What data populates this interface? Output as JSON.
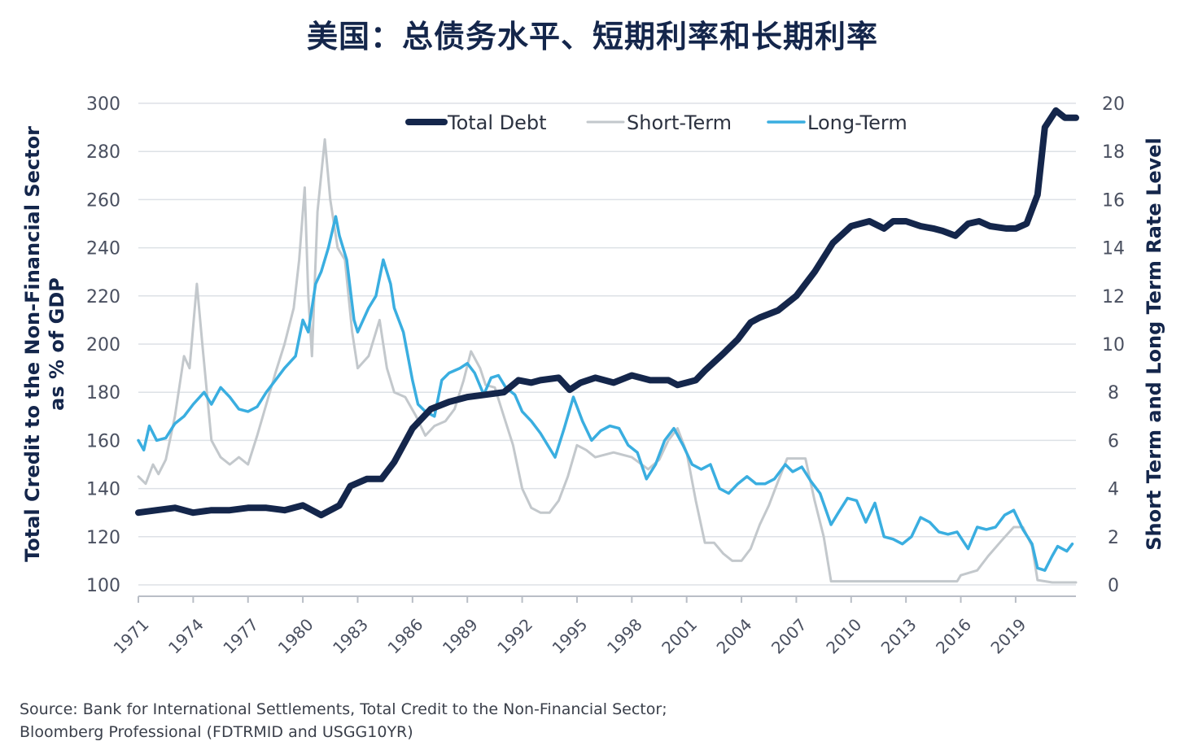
{
  "title": "美国：总债务水平、短期利率和长期利率",
  "source_lines": [
    "Source: Bank for International Settlements, Total Credit to the Non-Financial Sector;",
    "Bloomberg Professional (FDTRMID and USGG10YR)"
  ],
  "colors": {
    "total_debt": "#14264b",
    "short_term": "#c3c8cc",
    "long_term": "#3aaee0",
    "grid": "#dde1e6",
    "axis": "#b9bec6",
    "text": "#4a5060"
  },
  "chart_data": {
    "type": "line",
    "x_tick_labels": [
      "1971",
      "1974",
      "1977",
      "1980",
      "1983",
      "1986",
      "1989",
      "1992",
      "1995",
      "1998",
      "2001",
      "2004",
      "2007",
      "2010",
      "2013",
      "2016",
      "2019"
    ],
    "y_left": {
      "label_lines": [
        "Total Credit to the Non-Financial Sector",
        "as % of GDP"
      ],
      "range": [
        100,
        300
      ],
      "ticks": [
        100,
        120,
        140,
        160,
        180,
        200,
        220,
        240,
        260,
        280,
        300
      ]
    },
    "y_right": {
      "label": "Short Term and Long Term Rate Level",
      "range": [
        0,
        20
      ],
      "ticks": [
        0,
        2,
        4,
        6,
        8,
        10,
        12,
        14,
        16,
        18,
        20
      ]
    },
    "grid": "horizontal",
    "legend_position": "top",
    "series": [
      {
        "name": "Total Debt",
        "axis": "left",
        "points": [
          [
            1971,
            130
          ],
          [
            1972,
            131
          ],
          [
            1973,
            132
          ],
          [
            1974,
            130
          ],
          [
            1975,
            131
          ],
          [
            1976,
            131
          ],
          [
            1977,
            132
          ],
          [
            1978,
            132
          ],
          [
            1979,
            131
          ],
          [
            1980,
            133
          ],
          [
            1981,
            129
          ],
          [
            1982,
            133
          ],
          [
            1982.6,
            141
          ],
          [
            1983.5,
            144
          ],
          [
            1984.3,
            144
          ],
          [
            1985,
            151
          ],
          [
            1986,
            165
          ],
          [
            1987,
            173
          ],
          [
            1988,
            176
          ],
          [
            1989,
            178
          ],
          [
            1990,
            179
          ],
          [
            1991,
            180
          ],
          [
            1991.8,
            185
          ],
          [
            1992.5,
            184
          ],
          [
            1993,
            185
          ],
          [
            1994,
            186
          ],
          [
            1994.6,
            181
          ],
          [
            1995.2,
            184
          ],
          [
            1996,
            186
          ],
          [
            1997,
            184
          ],
          [
            1998,
            187
          ],
          [
            1999,
            185
          ],
          [
            2000,
            185
          ],
          [
            2000.5,
            183
          ],
          [
            2001,
            184
          ],
          [
            2001.5,
            185
          ],
          [
            2002,
            189
          ],
          [
            2003,
            196
          ],
          [
            2003.8,
            202
          ],
          [
            2004.5,
            209
          ],
          [
            2005,
            211
          ],
          [
            2006,
            214
          ],
          [
            2007,
            220
          ],
          [
            2008,
            230
          ],
          [
            2009,
            242
          ],
          [
            2010,
            249
          ],
          [
            2011,
            251
          ],
          [
            2011.8,
            248
          ],
          [
            2012.3,
            251
          ],
          [
            2013,
            251
          ],
          [
            2013.8,
            249
          ],
          [
            2014.5,
            248
          ],
          [
            2015,
            247
          ],
          [
            2015.7,
            245
          ],
          [
            2016.4,
            250
          ],
          [
            2017,
            251
          ],
          [
            2017.6,
            249
          ],
          [
            2018.5,
            248
          ],
          [
            2019,
            248
          ],
          [
            2019.6,
            250
          ],
          [
            2020.2,
            262
          ],
          [
            2020.6,
            290
          ],
          [
            2021.2,
            297
          ],
          [
            2021.7,
            294
          ],
          [
            2022.3,
            294
          ]
        ]
      },
      {
        "name": "Short-Term",
        "axis": "right",
        "points": [
          [
            1971,
            4.5
          ],
          [
            1971.4,
            4.2
          ],
          [
            1971.8,
            5.0
          ],
          [
            1972.1,
            4.6
          ],
          [
            1972.5,
            5.2
          ],
          [
            1973,
            7
          ],
          [
            1973.5,
            9.5
          ],
          [
            1973.8,
            9.0
          ],
          [
            1974.2,
            12.5
          ],
          [
            1974.5,
            10.0
          ],
          [
            1975,
            6
          ],
          [
            1975.5,
            5.3
          ],
          [
            1976,
            5.0
          ],
          [
            1976.5,
            5.3
          ],
          [
            1977,
            5.0
          ],
          [
            1977.5,
            6.2
          ],
          [
            1978,
            7.5
          ],
          [
            1978.5,
            8.8
          ],
          [
            1979,
            10.0
          ],
          [
            1979.5,
            11.5
          ],
          [
            1979.8,
            13.5
          ],
          [
            1980.1,
            16.5
          ],
          [
            1980.3,
            12.0
          ],
          [
            1980.5,
            9.5
          ],
          [
            1980.8,
            15.5
          ],
          [
            1981.2,
            18.5
          ],
          [
            1981.5,
            16.0
          ],
          [
            1981.9,
            14.0
          ],
          [
            1982.3,
            13.5
          ],
          [
            1982.7,
            10.5
          ],
          [
            1983,
            9.0
          ],
          [
            1983.6,
            9.5
          ],
          [
            1984.2,
            11.0
          ],
          [
            1984.6,
            9.0
          ],
          [
            1985,
            8.0
          ],
          [
            1985.6,
            7.8
          ],
          [
            1986.2,
            7.0
          ],
          [
            1986.7,
            6.2
          ],
          [
            1987.2,
            6.6
          ],
          [
            1987.8,
            6.8
          ],
          [
            1988.3,
            7.3
          ],
          [
            1988.8,
            8.5
          ],
          [
            1989.2,
            9.7
          ],
          [
            1989.7,
            9.0
          ],
          [
            1990,
            8.3
          ],
          [
            1990.5,
            8.2
          ],
          [
            1991,
            7.0
          ],
          [
            1991.5,
            5.8
          ],
          [
            1992,
            4.0
          ],
          [
            1992.5,
            3.2
          ],
          [
            1993,
            3.0
          ],
          [
            1993.5,
            3.0
          ],
          [
            1994,
            3.5
          ],
          [
            1994.5,
            4.5
          ],
          [
            1995,
            5.8
          ],
          [
            1995.5,
            5.6
          ],
          [
            1996,
            5.3
          ],
          [
            1997,
            5.5
          ],
          [
            1998,
            5.3
          ],
          [
            1998.9,
            4.8
          ],
          [
            1999.5,
            5.2
          ],
          [
            2000,
            6.0
          ],
          [
            2000.5,
            6.5
          ],
          [
            2001,
            5.5
          ],
          [
            2001.5,
            3.5
          ],
          [
            2002,
            1.75
          ],
          [
            2002.5,
            1.75
          ],
          [
            2003,
            1.3
          ],
          [
            2003.5,
            1.0
          ],
          [
            2004,
            1.0
          ],
          [
            2004.5,
            1.5
          ],
          [
            2005,
            2.5
          ],
          [
            2005.5,
            3.3
          ],
          [
            2006,
            4.3
          ],
          [
            2006.5,
            5.25
          ],
          [
            2007,
            5.25
          ],
          [
            2007.5,
            5.25
          ],
          [
            2008,
            3.5
          ],
          [
            2008.5,
            2.0
          ],
          [
            2008.9,
            0.15
          ],
          [
            2010,
            0.15
          ],
          [
            2012,
            0.15
          ],
          [
            2014,
            0.15
          ],
          [
            2015.8,
            0.15
          ],
          [
            2016,
            0.4
          ],
          [
            2016.9,
            0.6
          ],
          [
            2017.5,
            1.2
          ],
          [
            2018.3,
            1.9
          ],
          [
            2018.9,
            2.4
          ],
          [
            2019.4,
            2.4
          ],
          [
            2019.9,
            1.6
          ],
          [
            2020.2,
            0.2
          ],
          [
            2021,
            0.1
          ],
          [
            2022.3,
            0.1
          ]
        ]
      },
      {
        "name": "Long-Term",
        "axis": "right",
        "points": [
          [
            1971,
            6.0
          ],
          [
            1971.3,
            5.6
          ],
          [
            1971.6,
            6.6
          ],
          [
            1972,
            6.0
          ],
          [
            1972.5,
            6.1
          ],
          [
            1973,
            6.7
          ],
          [
            1973.5,
            7.0
          ],
          [
            1974,
            7.5
          ],
          [
            1974.6,
            8.0
          ],
          [
            1975,
            7.5
          ],
          [
            1975.5,
            8.2
          ],
          [
            1976,
            7.8
          ],
          [
            1976.5,
            7.3
          ],
          [
            1977,
            7.2
          ],
          [
            1977.5,
            7.4
          ],
          [
            1978,
            8.0
          ],
          [
            1978.5,
            8.5
          ],
          [
            1979,
            9.0
          ],
          [
            1979.6,
            9.5
          ],
          [
            1980,
            11.0
          ],
          [
            1980.3,
            10.5
          ],
          [
            1980.7,
            12.5
          ],
          [
            1981,
            13.0
          ],
          [
            1981.4,
            14.0
          ],
          [
            1981.8,
            15.3
          ],
          [
            1982,
            14.5
          ],
          [
            1982.4,
            13.5
          ],
          [
            1982.8,
            11.0
          ],
          [
            1983,
            10.5
          ],
          [
            1983.6,
            11.5
          ],
          [
            1984,
            12.0
          ],
          [
            1984.4,
            13.5
          ],
          [
            1984.8,
            12.5
          ],
          [
            1985,
            11.5
          ],
          [
            1985.5,
            10.5
          ],
          [
            1986,
            8.5
          ],
          [
            1986.3,
            7.5
          ],
          [
            1986.7,
            7.2
          ],
          [
            1987.2,
            7.0
          ],
          [
            1987.6,
            8.5
          ],
          [
            1988,
            8.8
          ],
          [
            1988.6,
            9.0
          ],
          [
            1989,
            9.2
          ],
          [
            1989.4,
            8.8
          ],
          [
            1989.9,
            7.9
          ],
          [
            1990.3,
            8.6
          ],
          [
            1990.7,
            8.7
          ],
          [
            1991.1,
            8.2
          ],
          [
            1991.6,
            7.9
          ],
          [
            1992,
            7.2
          ],
          [
            1992.5,
            6.8
          ],
          [
            1993,
            6.3
          ],
          [
            1993.8,
            5.3
          ],
          [
            1994.3,
            6.5
          ],
          [
            1994.8,
            7.8
          ],
          [
            1995.3,
            6.8
          ],
          [
            1995.8,
            6.0
          ],
          [
            1996.3,
            6.4
          ],
          [
            1996.8,
            6.6
          ],
          [
            1997.3,
            6.5
          ],
          [
            1997.8,
            5.8
          ],
          [
            1998.3,
            5.5
          ],
          [
            1998.8,
            4.4
          ],
          [
            1999.3,
            5.0
          ],
          [
            1999.8,
            6.0
          ],
          [
            2000.3,
            6.5
          ],
          [
            2000.8,
            5.8
          ],
          [
            2001.3,
            5.0
          ],
          [
            2001.8,
            4.8
          ],
          [
            2002.3,
            5.0
          ],
          [
            2002.8,
            4.0
          ],
          [
            2003.3,
            3.8
          ],
          [
            2003.8,
            4.2
          ],
          [
            2004.3,
            4.5
          ],
          [
            2004.8,
            4.2
          ],
          [
            2005.3,
            4.2
          ],
          [
            2005.8,
            4.4
          ],
          [
            2006.4,
            5.0
          ],
          [
            2006.8,
            4.7
          ],
          [
            2007.3,
            4.9
          ],
          [
            2007.8,
            4.3
          ],
          [
            2008.3,
            3.8
          ],
          [
            2008.9,
            2.5
          ],
          [
            2009.3,
            3.0
          ],
          [
            2009.8,
            3.6
          ],
          [
            2010.3,
            3.5
          ],
          [
            2010.8,
            2.6
          ],
          [
            2011.3,
            3.4
          ],
          [
            2011.8,
            2.0
          ],
          [
            2012.3,
            1.9
          ],
          [
            2012.8,
            1.7
          ],
          [
            2013.3,
            2.0
          ],
          [
            2013.8,
            2.8
          ],
          [
            2014.3,
            2.6
          ],
          [
            2014.8,
            2.2
          ],
          [
            2015.3,
            2.1
          ],
          [
            2015.8,
            2.2
          ],
          [
            2016.4,
            1.5
          ],
          [
            2016.9,
            2.4
          ],
          [
            2017.4,
            2.3
          ],
          [
            2017.9,
            2.4
          ],
          [
            2018.4,
            2.9
          ],
          [
            2018.9,
            3.1
          ],
          [
            2019.4,
            2.3
          ],
          [
            2019.9,
            1.7
          ],
          [
            2020.2,
            0.7
          ],
          [
            2020.6,
            0.6
          ],
          [
            2021,
            1.2
          ],
          [
            2021.3,
            1.6
          ],
          [
            2021.8,
            1.4
          ],
          [
            2022.1,
            1.7
          ]
        ]
      }
    ]
  }
}
